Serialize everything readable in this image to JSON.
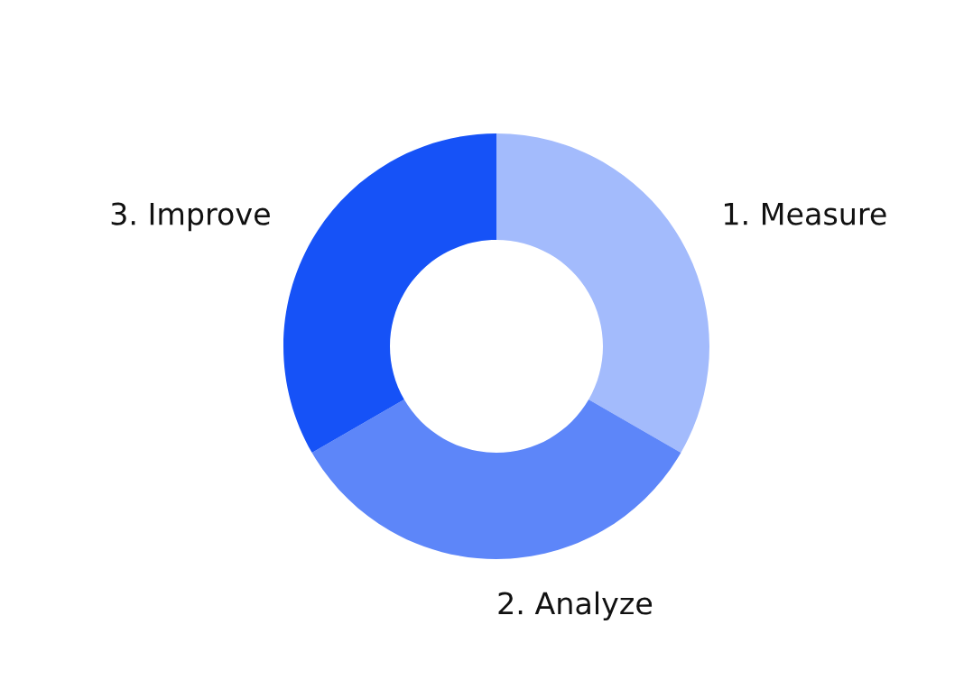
{
  "chart_data": {
    "type": "donut",
    "categories": [
      "1. Measure",
      "2. Analyze",
      "3. Improve"
    ],
    "values": [
      33.33,
      33.33,
      33.34
    ],
    "colors": [
      "#a3bbfc",
      "#5d86f9",
      "#1652f7"
    ],
    "legend": false
  }
}
